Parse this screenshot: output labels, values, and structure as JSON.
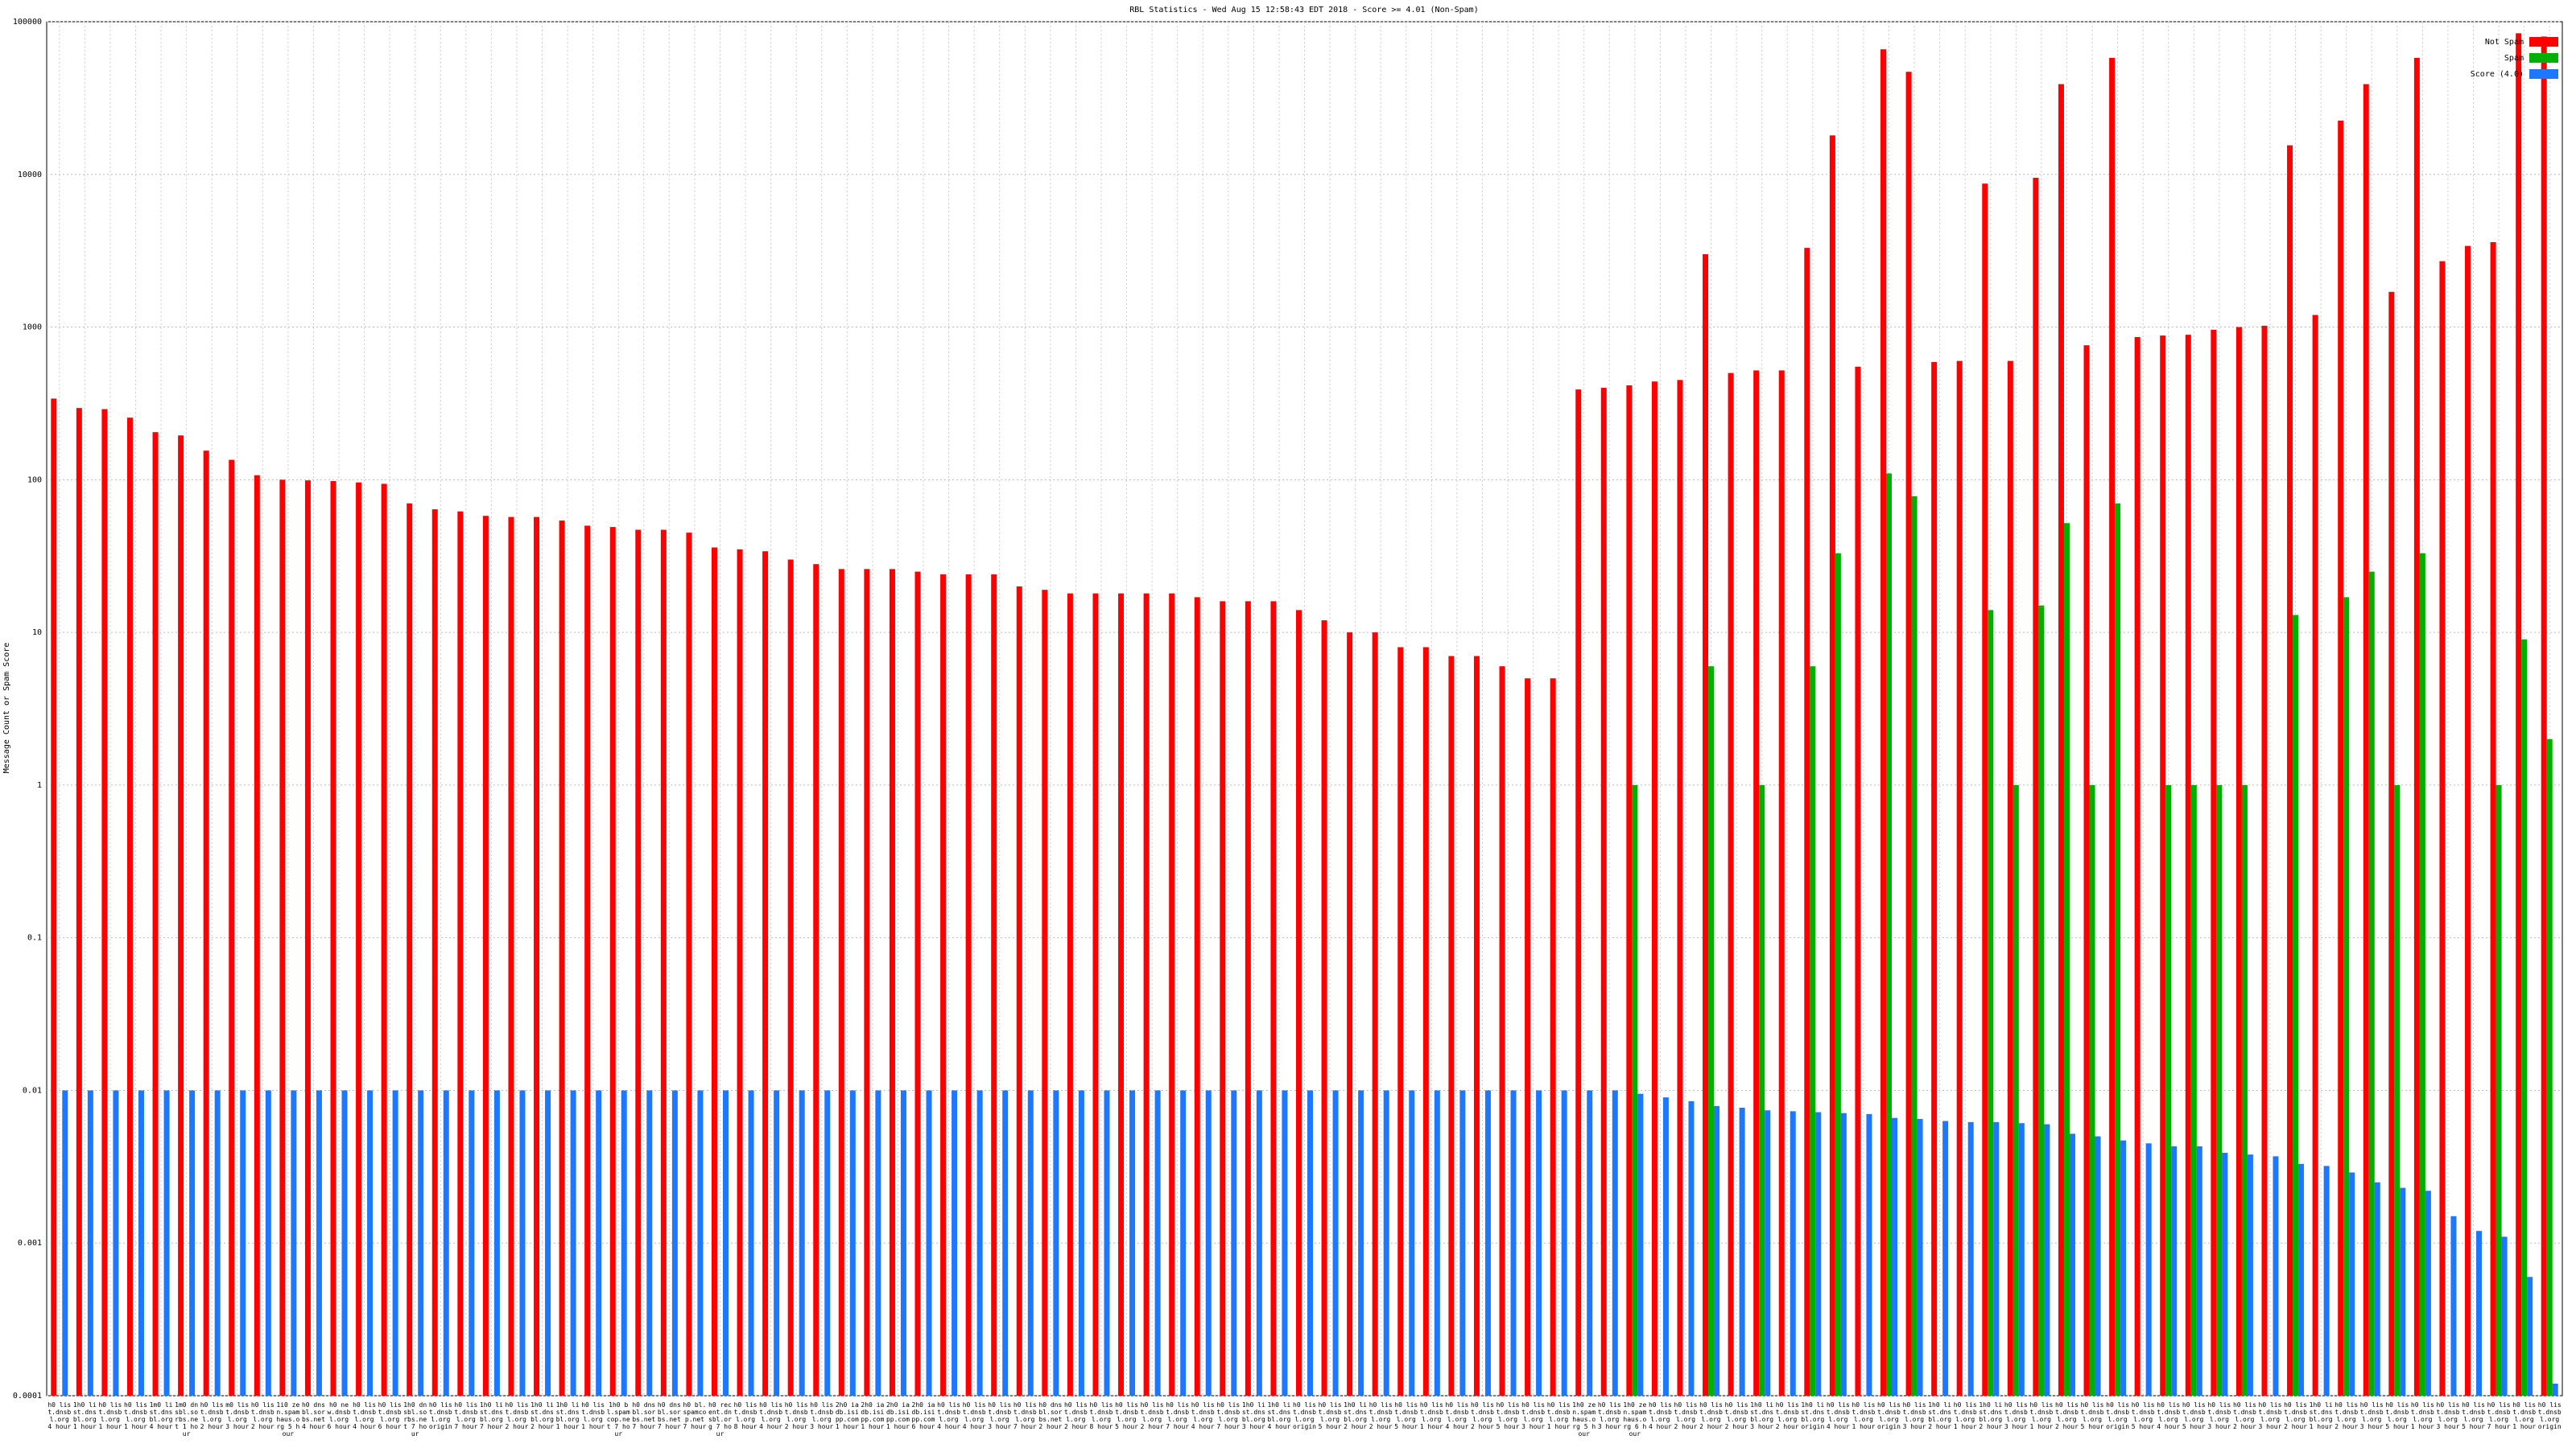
{
  "chart_data": {
    "type": "bar",
    "title": "RBL Statistics - Wed Aug 15 12:58:43 EDT 2018 - Score >= 4.01 (Non-Spam)",
    "y_label": "Message Count or Spam Score",
    "log_scale": true,
    "grid": true,
    "legend": "top-right",
    "ylim": [
      0.0001,
      100000
    ],
    "yticks": [
      0.0001,
      0.001,
      0.01,
      0.1,
      1,
      10,
      100,
      1000,
      10000,
      100000
    ],
    "categories": [
      "h0 list.dnsbl.org 4 hour",
      "1h0 list.dnsbl.org 1 hour",
      "h0 list.dnsbl.org 1 hour",
      "h0 list.dnsbl.org 1 hour",
      "1m0 list.dnsbl.org 4 hour",
      "1m0 dnsbl.sorbs.net 1 hour",
      "h0 list.dnsbl.org 2 hour",
      "m0 list.dnsbl.org 3 hour",
      "h0 list.dnsbl.org 2 hour",
      "1i0 zen.spamhaus.org 5 hour",
      "h0 dnsbl.sorbs.net 4 hour",
      "h0 new.dnsbl.org 6 hour",
      "h0 list.dnsbl.org 4 hour",
      "h0 list.dnsbl.org 6 hour",
      "1h0 dnsbl.sorbs.net 7 hour",
      "h0 list.dnsbl.org origin",
      "h0 list.dnsbl.org 7 hour",
      "1h0 list.dnsbl.org 7 hour",
      "h0 list.dnsbl.org 2 hour",
      "1h0 list.dnsbl.org 2 hour",
      "1h0 list.dnsbl.org 1 hour",
      "h0 list.dnsbl.org 1 hour",
      "1h0 bl.spamcop.net 7 hour",
      "h0 dnsbl.sorbs.net 7 hour",
      "h0 dnsbl.sorbs.net 7 hour",
      "h0 bl.spamcop.net 7 hour",
      "h0 recent.dnsbl.org 7 hour",
      "h0 list.dnsbl.org 8 hour",
      "h0 list.dnsbl.org 4 hour",
      "h0 list.dnsbl.org 2 hour",
      "h0 list.dnsbl.org 3 hour",
      "2h0 iadb.isipp.com 1 hour",
      "2h0 iadb.isipp.com 1 hour",
      "2h0 iadb.isipp.com 1 hour",
      "2h0 iadb.isipp.com 6 hour",
      "h0 list.dnsbl.org 4 hour",
      "h0 list.dnsbl.org 4 hour",
      "h0 list.dnsbl.org 3 hour",
      "h0 list.dnsbl.org 7 hour",
      "h0 dnsbl.sorbs.net 2 hour",
      "h0 list.dnsbl.org 2 hour",
      "h0 list.dnsbl.org 8 hour",
      "h0 list.dnsbl.org 5 hour",
      "h0 list.dnsbl.org 2 hour",
      "h0 list.dnsbl.org 7 hour",
      "h0 list.dnsbl.org 4 hour",
      "h0 list.dnsbl.org 7 hour",
      "1h0 list.dnsbl.org 3 hour",
      "1h0 list.dnsbl.org 4 hour",
      "h0 list.dnsbl.org origin",
      "h0 list.dnsbl.org 5 hour",
      "1h0 list.dnsbl.org 2 hour",
      "h0 list.dnsbl.org 2 hour",
      "h0 list.dnsbl.org 5 hour",
      "h0 list.dnsbl.org 1 hour",
      "h0 list.dnsbl.org 4 hour",
      "h0 list.dnsbl.org 2 hour",
      "h0 list.dnsbl.org 5 hour",
      "h0 list.dnsbl.org 3 hour",
      "h0 list.dnsbl.org 1 hour",
      "1h0 zen.spamhaus.org 5 hour",
      "h0 list.dnsbl.org 3 hour",
      "1h0 zen.spamhaus.org 6 hour",
      "h0 list.dnsbl.org 4 hour",
      "h0 list.dnsbl.org 2 hour",
      "h0 list.dnsbl.org 2 hour",
      "h0 list.dnsbl.org 2 hour",
      "1h0 list.dnsbl.org 3 hour",
      "h0 list.dnsbl.org 2 hour",
      "1h0 list.dnsbl.org origin",
      "h0 list.dnsbl.org 4 hour",
      "h0 list.dnsbl.org 1 hour",
      "h0 list.dnsbl.org origin",
      "h0 list.dnsbl.org 3 hour",
      "1h0 list.dnsbl.org 2 hour",
      "h0 list.dnsbl.org 1 hour",
      "1h0 list.dnsbl.org 2 hour",
      "h0 list.dnsbl.org 3 hour",
      "h0 list.dnsbl.org 1 hour",
      "h0 list.dnsbl.org 2 hour",
      "h0 list.dnsbl.org 5 hour",
      "h0 list.dnsbl.org origin",
      "h0 list.dnsbl.org 5 hour",
      "h0 list.dnsbl.org 4 hour",
      "h0 list.dnsbl.org 5 hour",
      "h0 list.dnsbl.org 3 hour",
      "h0 list.dnsbl.org 2 hour",
      "h0 list.dnsbl.org 3 hour",
      "h0 list.dnsbl.org 2 hour",
      "1h0 list.dnsbl.org 1 hour",
      "h0 list.dnsbl.org 2 hour",
      "h0 list.dnsbl.org 3 hour",
      "h0 list.dnsbl.org 5 hour",
      "h0 list.dnsbl.org 1 hour",
      "h0 list.dnsbl.org 3 hour",
      "h0 list.dnsbl.org 5 hour",
      "h0 list.dnsbl.org 7 hour",
      "h0 list.dnsbl.org 1 hour",
      "h0 list.dnsbl.org origin"
    ],
    "series": [
      {
        "name": "Not Spam",
        "color": "#ff0000",
        "values": [
          340,
          295,
          290,
          255,
          205,
          195,
          155,
          135,
          107,
          100,
          99,
          98,
          96,
          94,
          70,
          64,
          62,
          58,
          57,
          57,
          54,
          50,
          49,
          47,
          47,
          45,
          36,
          35,
          34,
          30,
          28,
          26,
          26,
          26,
          25,
          24,
          24,
          24,
          20,
          19,
          18,
          18,
          18,
          18,
          18,
          17,
          16,
          16,
          16,
          14,
          12,
          10,
          10,
          8,
          8,
          7,
          7,
          6,
          5,
          5,
          390,
          400,
          415,
          440,
          450,
          3000,
          500,
          520,
          520,
          3300,
          18000,
          550,
          66000,
          47000,
          590,
          600,
          8700,
          600,
          9500,
          39000,
          760,
          58000,
          860,
          880,
          890,
          960,
          1000,
          1020,
          15500,
          1200,
          22500,
          39000,
          1700,
          58000,
          2700,
          3400,
          3600,
          84000,
          80000
        ]
      },
      {
        "name": "Spam",
        "color": "#00b000",
        "values": [
          null,
          null,
          null,
          null,
          null,
          null,
          null,
          null,
          null,
          null,
          null,
          null,
          null,
          null,
          null,
          null,
          null,
          null,
          null,
          null,
          null,
          null,
          null,
          null,
          null,
          null,
          null,
          null,
          null,
          null,
          null,
          null,
          null,
          null,
          null,
          null,
          null,
          null,
          null,
          null,
          null,
          null,
          null,
          null,
          null,
          null,
          null,
          null,
          null,
          null,
          null,
          null,
          null,
          null,
          null,
          null,
          null,
          null,
          null,
          null,
          null,
          null,
          1,
          null,
          null,
          6,
          null,
          1,
          null,
          6,
          33,
          null,
          110,
          78,
          null,
          null,
          14,
          1,
          15,
          52,
          1,
          70,
          null,
          1,
          1,
          1,
          1,
          null,
          13,
          null,
          17,
          25,
          1,
          33,
          null,
          null,
          1,
          9,
          2
        ]
      },
      {
        "name": "Score (4.0)",
        "color": "#1e78ff",
        "values": [
          0.01,
          0.01,
          0.01,
          0.01,
          0.01,
          0.01,
          0.01,
          0.01,
          0.01,
          0.01,
          0.01,
          0.01,
          0.01,
          0.01,
          0.01,
          0.01,
          0.01,
          0.01,
          0.01,
          0.01,
          0.01,
          0.01,
          0.01,
          0.01,
          0.01,
          0.01,
          0.01,
          0.01,
          0.01,
          0.01,
          0.01,
          0.01,
          0.01,
          0.01,
          0.01,
          0.01,
          0.01,
          0.01,
          0.01,
          0.01,
          0.01,
          0.01,
          0.01,
          0.01,
          0.01,
          0.01,
          0.01,
          0.01,
          0.01,
          0.01,
          0.01,
          0.01,
          0.01,
          0.01,
          0.01,
          0.01,
          0.01,
          0.01,
          0.01,
          0.01,
          0.01,
          0.01,
          0.0095,
          0.009,
          0.0085,
          0.0079,
          0.0077,
          0.0074,
          0.0073,
          0.0072,
          0.0071,
          0.007,
          0.0066,
          0.0065,
          0.0063,
          0.0062,
          0.0062,
          0.0061,
          0.006,
          0.0052,
          0.005,
          0.0047,
          0.0045,
          0.0043,
          0.0043,
          0.0039,
          0.0038,
          0.0037,
          0.0033,
          0.0032,
          0.0029,
          0.0025,
          0.0023,
          0.0022,
          0.0015,
          0.0012,
          0.0011,
          0.0006,
          0.00012
        ]
      }
    ]
  }
}
